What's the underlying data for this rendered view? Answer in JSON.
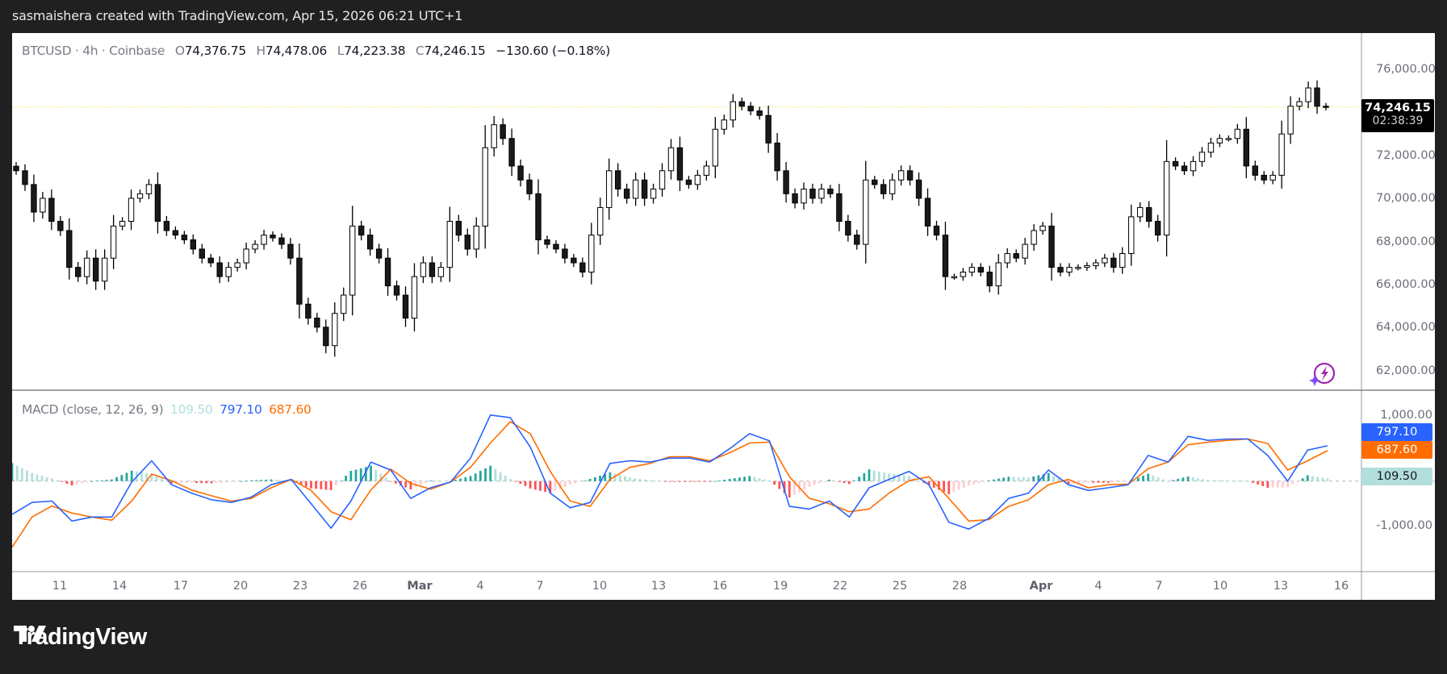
{
  "header": {
    "attribution": "sasmaishera created with TradingView.com, Apr 15, 2026 06:21 UTC+1"
  },
  "legend": {
    "symbol": "BTCUSD · 4h · Coinbase",
    "o_label": "O",
    "o": "74,376.75",
    "h_label": "H",
    "h": "74,478.06",
    "l_label": "L",
    "l": "74,223.38",
    "c_label": "C",
    "c": "74,246.15",
    "change": "−130.60 (−0.18%)"
  },
  "price_label": {
    "value": "74,246.15",
    "countdown": "02:38:39"
  },
  "macd_legend": {
    "title": "MACD (close, 12, 26, 9)",
    "histogram": "109.50",
    "macd": "797.10",
    "signal": "687.60"
  },
  "macd_badges": {
    "macd": "797.10",
    "signal": "687.60",
    "histogram": "109.50"
  },
  "footer": {
    "brand": "TradingView"
  },
  "colors": {
    "up_body": "#ffffff",
    "down_body": "#1a1a1a",
    "wick": "#000000",
    "macd": "#2962ff",
    "signal": "#ff6d00",
    "hist_up_strong": "#26a69a",
    "hist_up_weak": "#b2dfdb",
    "hist_down_strong": "#ff5252",
    "hist_down_weak": "#ffcdd2",
    "last_price_line": "#f5d742",
    "assistant_icon": "#9c27b0"
  },
  "icons": {
    "assistant": "lightning-circle-icon",
    "logo": "tradingview-logo-icon"
  },
  "chart_data": [
    {
      "type": "candlestick",
      "title": "BTCUSD · 4h · Coinbase",
      "ylim": [
        61090,
        77690
      ],
      "y_ticks": [
        "76,000.00",
        "72,000.00",
        "70,000.00",
        "68,000.00",
        "66,000.00",
        "64,000.00",
        "62,000.00"
      ],
      "y_tick_values": [
        76000,
        72000,
        70000,
        68000,
        66000,
        64000,
        62000
      ],
      "x_ticks": [
        "11",
        "14",
        "17",
        "20",
        "23",
        "26",
        "Mar",
        "4",
        "7",
        "10",
        "13",
        "16",
        "19",
        "22",
        "25",
        "28",
        "Apr",
        "4",
        "7",
        "10",
        "13",
        "16"
      ],
      "last_price": 74246.15,
      "grid": false,
      "first_open": 71500,
      "close": [
        71290,
        70650,
        69370,
        70010,
        68940,
        68510,
        66800,
        66370,
        67230,
        66160,
        67230,
        68720,
        68940,
        70010,
        70220,
        70650,
        68940,
        68510,
        68300,
        68080,
        67650,
        67230,
        67010,
        66370,
        66800,
        67010,
        67650,
        67870,
        68300,
        68170,
        67870,
        67230,
        65090,
        64440,
        64020,
        63160,
        64660,
        65510,
        68720,
        68300,
        67650,
        67230,
        65940,
        65510,
        64440,
        66370,
        67010,
        66370,
        66800,
        68940,
        68300,
        67650,
        68720,
        72360,
        73430,
        72790,
        71510,
        70860,
        70220,
        68080,
        67870,
        67650,
        67230,
        67010,
        66580,
        68300,
        69580,
        71290,
        70440,
        70010,
        70860,
        70010,
        70440,
        71290,
        72360,
        70860,
        70650,
        71080,
        71510,
        73220,
        73650,
        74500,
        74290,
        74070,
        73860,
        72580,
        71290,
        70220,
        69790,
        70440,
        70010,
        70440,
        70220,
        68940,
        68300,
        67870,
        70860,
        70650,
        70220,
        70860,
        71290,
        70860,
        70010,
        68720,
        68300,
        66370,
        66370,
        66580,
        66800,
        66580,
        65940,
        67010,
        67440,
        67230,
        67870,
        68510,
        68720,
        66800,
        66580,
        66800,
        66800,
        66880,
        67010,
        67230,
        66800,
        67440,
        69150,
        69580,
        68940,
        68300,
        71720,
        71510,
        71290,
        71720,
        72150,
        72580,
        72790,
        72790,
        73220,
        71510,
        71080,
        70860,
        71080,
        73000,
        74290,
        74500,
        75140,
        74290,
        74246.15
      ]
    },
    {
      "type": "line",
      "title": "MACD (close, 12, 26, 9)",
      "ylim": [
        -2040,
        2050
      ],
      "y_ticks": [
        "1,000.00",
        "-1,000.00"
      ],
      "y_tick_values": [
        1000,
        -1000
      ],
      "sampling": "daily",
      "series": [
        {
          "name": "MACD",
          "values": [
            -750,
            -480,
            -450,
            -900,
            -810,
            -810,
            -20,
            460,
            -80,
            -270,
            -420,
            -480,
            -360,
            -80,
            40,
            -510,
            -1060,
            -450,
            430,
            250,
            -390,
            -150,
            -20,
            520,
            1490,
            1430,
            770,
            -270,
            -600,
            -480,
            400,
            460,
            430,
            520,
            520,
            430,
            730,
            1070,
            910,
            -570,
            -630,
            -450,
            -810,
            -150,
            40,
            220,
            -80,
            -930,
            -1080,
            -840,
            -390,
            -270,
            250,
            -80,
            -210,
            -150,
            -80,
            580,
            430,
            1010,
            920,
            950,
            950,
            580,
            0,
            700,
            797.1
          ]
        },
        {
          "name": "Signal",
          "values": [
            -1490,
            -810,
            -560,
            -720,
            -810,
            -880,
            -450,
            160,
            10,
            -200,
            -330,
            -450,
            -390,
            -150,
            40,
            -210,
            -690,
            -870,
            -200,
            270,
            -50,
            -180,
            -20,
            310,
            860,
            1340,
            1070,
            220,
            -450,
            -570,
            40,
            310,
            400,
            550,
            550,
            460,
            640,
            860,
            880,
            100,
            -390,
            -510,
            -690,
            -630,
            -270,
            10,
            100,
            -390,
            -900,
            -870,
            -570,
            -420,
            -80,
            40,
            -150,
            -80,
            -70,
            280,
            430,
            820,
            880,
            920,
            950,
            850,
            250,
            460,
            687.6
          ]
        }
      ],
      "histogram": "MACD − Signal"
    }
  ]
}
